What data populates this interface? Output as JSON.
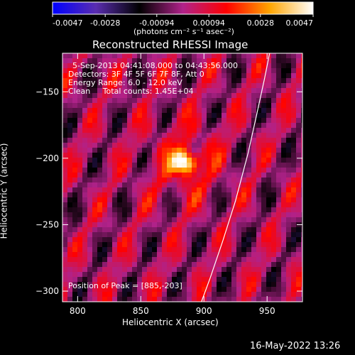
{
  "chart_data": {
    "type": "heatmap",
    "title": "Reconstructed RHESSI Image",
    "xlabel": "Heliocentric X (arcsec)",
    "ylabel": "Heliocentric Y (arcsec)",
    "xlim": [
      788,
      978
    ],
    "ylim": [
      -308,
      -121
    ],
    "x_ticks": [
      800,
      850,
      900,
      950
    ],
    "y_ticks": [
      -150,
      -200,
      -250,
      -300
    ],
    "colorbar": {
      "range": [
        -0.0047,
        0.0047
      ],
      "ticks": [
        "-0.0047",
        "-0.0028",
        "-0.00094",
        "0.00094",
        "0.0028",
        "0.0047"
      ],
      "units": "(photons cm⁻² s⁻¹ asec⁻²)",
      "colors": [
        "#0000ff",
        "#5a2db0",
        "#000000",
        "#b0228a",
        "#ff0000",
        "#ffa500",
        "#ffffff"
      ]
    },
    "annotations": [
      "5-Sep-2013 04:41:08.000 to 04:43:56.000",
      "Detectors: 3F 4F 5F 6F 7F 8F, Att 0",
      "Energy Range: 6.0 - 12.0 keV",
      "Clean     Total counts: 1.45E+04"
    ],
    "peak_label": "Position of Peak = [885,-203]",
    "peak": {
      "x": 885,
      "y": -203
    },
    "limb_curve": [
      [
        898,
        -308
      ],
      [
        905,
        -290
      ],
      [
        915,
        -262
      ],
      [
        925,
        -232
      ],
      [
        935,
        -196
      ],
      [
        942,
        -166
      ],
      [
        948,
        -140
      ],
      [
        952,
        -121
      ]
    ]
  },
  "footer": {
    "date": "16-May-2022 13:26"
  }
}
